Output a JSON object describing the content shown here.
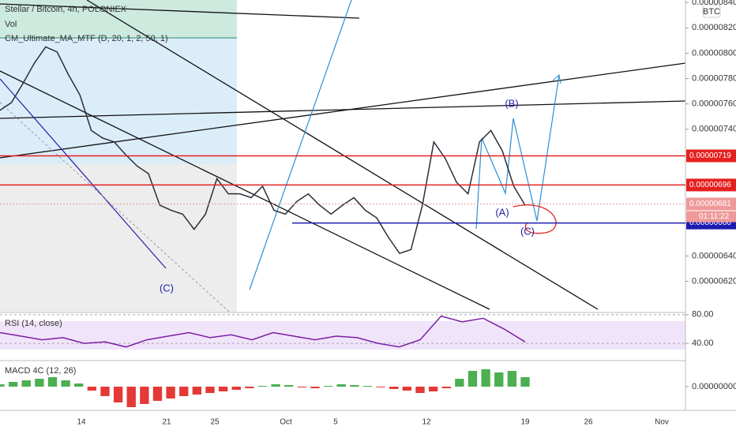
{
  "chart_data": [
    {
      "type": "line",
      "title": "Stellar / Bitcoin, 4h, POLONIEX",
      "indicators": [
        "Vol",
        "CM_Ultimate_MA_MTF (D, 20, 1, 2, 50, 1)"
      ],
      "unit_label": "BTC",
      "color": "#2a2e39",
      "values": [
        7.55e-06,
        7.61e-06,
        7.76e-06,
        7.92e-06,
        8.05e-06,
        8.01e-06,
        7.83e-06,
        7.67e-06,
        7.39e-06,
        7.33e-06,
        7.3e-06,
        7.2e-06,
        7.11e-06,
        7.05e-06,
        6.8e-06,
        6.76e-06,
        6.73e-06,
        6.61e-06,
        6.73e-06,
        7.01e-06,
        6.89e-06,
        6.89e-06,
        6.86e-06,
        6.95e-06,
        6.76e-06,
        6.73e-06,
        6.83e-06,
        6.89e-06,
        6.8e-06,
        6.73e-06,
        6.8e-06,
        6.86e-06,
        6.76e-06,
        6.7e-06,
        6.55e-06,
        6.42e-06,
        6.45e-06,
        6.8e-06,
        7.3e-06,
        7.17e-06,
        6.98e-06,
        6.89e-06,
        7.3e-06,
        7.39e-06,
        7.23e-06,
        6.95e-06,
        6.8e-06
      ],
      "ylim": [
        5.96e-06,
        8.42e-06
      ],
      "yticks": [
        {
          "value": 8.4e-06,
          "label": "0.00000840"
        },
        {
          "value": 8.2e-06,
          "label": "0.00000820"
        },
        {
          "value": 8e-06,
          "label": "0.00000800"
        },
        {
          "value": 7.8e-06,
          "label": "0.00000780"
        },
        {
          "value": 7.6e-06,
          "label": "0.00000760"
        },
        {
          "value": 7.4e-06,
          "label": "0.00000740"
        },
        {
          "value": 6.4e-06,
          "label": "0.00000640"
        },
        {
          "value": 6.2e-06,
          "label": "0.00000620"
        }
      ],
      "levels": [
        {
          "value": 7.19e-06,
          "label": "0.00000719",
          "color": "#e52020"
        },
        {
          "value": 6.96e-06,
          "label": "0.00000696",
          "color": "#e52020"
        },
        {
          "value": 6.81e-06,
          "label": "0.00000681",
          "color": "#ef9a9a"
        },
        {
          "value": 6.66e-06,
          "label": "0.00000666",
          "color": "#1c1cb0"
        }
      ],
      "countdown": "01:11:22",
      "annotations": [
        "(B)",
        "(A)",
        "(C)",
        "(C)"
      ]
    },
    {
      "type": "line",
      "title": "RSI (14, close)",
      "color": "#7b1fa2",
      "values": [
        55,
        50,
        45,
        48,
        40,
        42,
        35,
        45,
        50,
        55,
        48,
        52,
        45,
        55,
        50,
        45,
        50,
        48,
        40,
        35,
        45,
        78,
        70,
        75,
        60,
        42
      ],
      "ylim": [
        17,
        82
      ],
      "yticks": [
        {
          "value": 80,
          "label": "80.00"
        },
        {
          "value": 40,
          "label": "40.00"
        }
      ]
    },
    {
      "type": "bar",
      "title": "MACD 4C (12, 26)",
      "values": [
        3e-09,
        6e-09,
        8e-09,
        1e-08,
        1.2e-08,
        8e-09,
        4e-09,
        -5e-09,
        -1.2e-08,
        -2e-08,
        -2.6e-08,
        -2.2e-08,
        -1.8e-08,
        -1.5e-08,
        -1.2e-08,
        -1e-08,
        -8e-09,
        -6e-09,
        -4e-09,
        -2e-09,
        1e-09,
        3e-09,
        2e-09,
        -1e-09,
        -2e-09,
        1e-09,
        3e-09,
        2e-09,
        1e-09,
        -1e-09,
        -3e-09,
        -5e-09,
        -8e-09,
        -6e-09,
        -2e-09,
        1e-08,
        2e-08,
        2.2e-08,
        1.8e-08,
        2e-08,
        1.2e-08
      ],
      "colors": {
        "positive": "#4caf50",
        "negative": "#e53935"
      },
      "ylim": [
        -2.8e-08,
        3.2e-08
      ],
      "yticks": [
        {
          "value": 0,
          "label": "0.00000000"
        }
      ]
    }
  ],
  "time_axis": {
    "labels": [
      "14",
      "21",
      "25",
      "Oct",
      "5",
      "12",
      "19",
      "26",
      "Nov"
    ]
  }
}
